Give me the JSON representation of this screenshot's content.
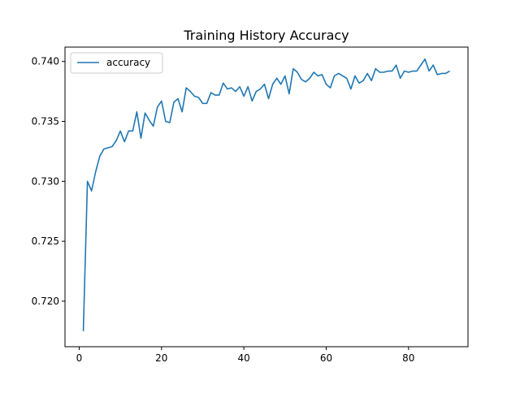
{
  "chart_data": {
    "type": "line",
    "title": "Training History Accuracy",
    "xlabel": "",
    "ylabel": "",
    "xlim": [
      -3.45,
      94.45
    ],
    "ylim": [
      0.7162,
      0.7412
    ],
    "xticks": [
      0,
      20,
      40,
      60,
      80
    ],
    "yticks": [
      0.72,
      0.725,
      0.73,
      0.735,
      0.74
    ],
    "ytick_labels": [
      "0.720",
      "0.725",
      "0.730",
      "0.735",
      "0.740"
    ],
    "grid": false,
    "legend": {
      "placement": "top-left",
      "entries": [
        "accuracy"
      ]
    },
    "series": [
      {
        "name": "accuracy",
        "color": "#1f77b4",
        "x": [
          1,
          2,
          3,
          4,
          5,
          6,
          7,
          8,
          9,
          10,
          11,
          12,
          13,
          14,
          15,
          16,
          17,
          18,
          19,
          20,
          21,
          22,
          23,
          24,
          25,
          26,
          27,
          28,
          29,
          30,
          31,
          32,
          33,
          34,
          35,
          36,
          37,
          38,
          39,
          40,
          41,
          42,
          43,
          44,
          45,
          46,
          47,
          48,
          49,
          50,
          51,
          52,
          53,
          54,
          55,
          56,
          57,
          58,
          59,
          60,
          61,
          62,
          63,
          64,
          65,
          66,
          67,
          68,
          69,
          70,
          71,
          72,
          73,
          74,
          75,
          76,
          77,
          78,
          79,
          80,
          81,
          82,
          83,
          84,
          85,
          86,
          87,
          88,
          89,
          90
        ],
        "values": [
          0.7175,
          0.73,
          0.7292,
          0.7308,
          0.7321,
          0.7327,
          0.7328,
          0.7329,
          0.7334,
          0.7342,
          0.7333,
          0.7342,
          0.7342,
          0.7358,
          0.7336,
          0.7357,
          0.7351,
          0.7346,
          0.7362,
          0.7367,
          0.735,
          0.7349,
          0.7366,
          0.7369,
          0.7358,
          0.7378,
          0.7375,
          0.7371,
          0.737,
          0.7365,
          0.7365,
          0.7374,
          0.7372,
          0.7372,
          0.7382,
          0.7377,
          0.7378,
          0.7375,
          0.7379,
          0.7371,
          0.7379,
          0.7367,
          0.7375,
          0.7377,
          0.7381,
          0.7369,
          0.7381,
          0.7386,
          0.7381,
          0.7388,
          0.7373,
          0.7394,
          0.7391,
          0.7385,
          0.7383,
          0.7386,
          0.7391,
          0.7388,
          0.7389,
          0.7381,
          0.7378,
          0.7388,
          0.739,
          0.7388,
          0.7386,
          0.7377,
          0.7388,
          0.7382,
          0.7384,
          0.739,
          0.7384,
          0.7394,
          0.7391,
          0.7391,
          0.7392,
          0.7392,
          0.7397,
          0.7386,
          0.7392,
          0.7391,
          0.7392,
          0.7392,
          0.7397,
          0.7402,
          0.7392,
          0.7397,
          0.7389,
          0.739,
          0.739,
          0.7392
        ]
      }
    ]
  }
}
